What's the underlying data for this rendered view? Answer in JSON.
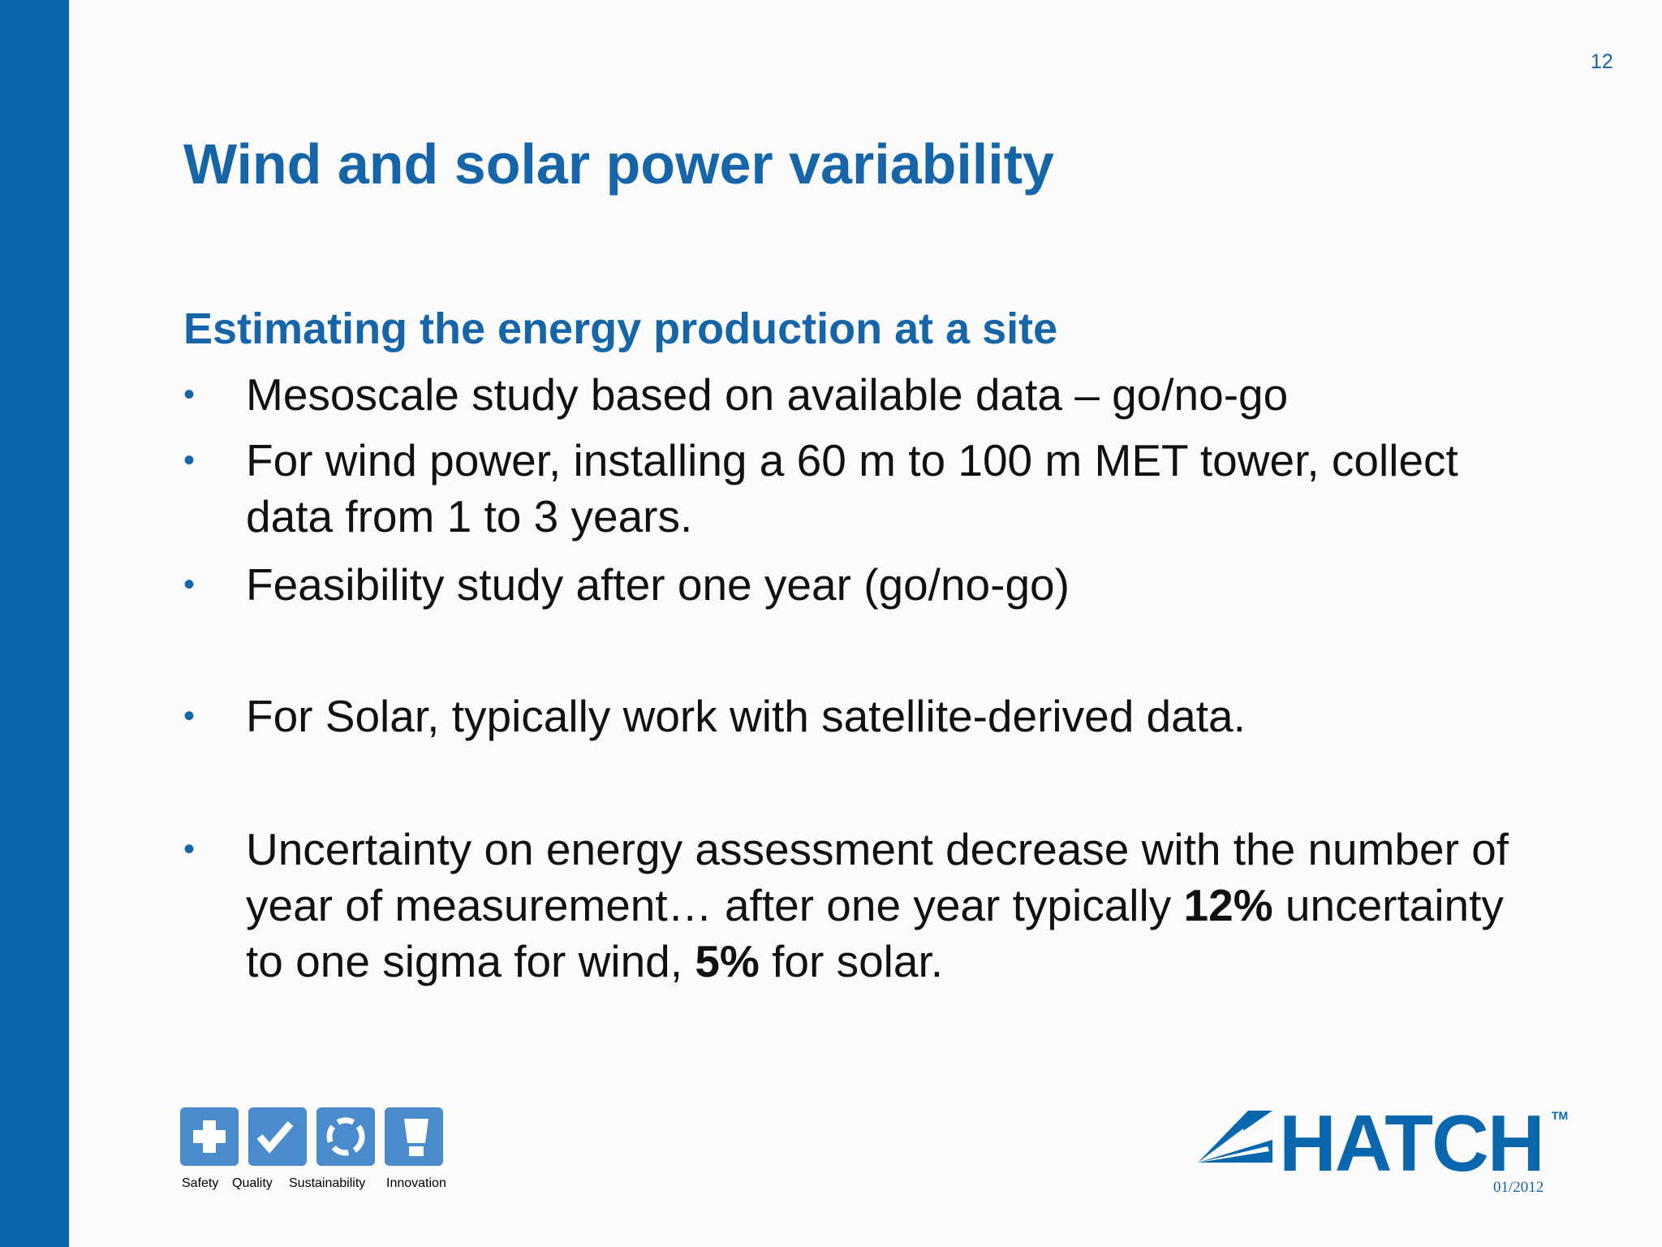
{
  "page_number": "12",
  "title": "Wind and solar power variability",
  "subtitle": "Estimating the energy production at a site",
  "bullets": [
    [
      {
        "text": "Mesoscale study based on available data – go/no-go",
        "bold": false
      }
    ],
    [
      {
        "text": "For wind power, installing a 60 m to 100 m MET tower, collect data from 1 to 3 years.",
        "bold": false
      }
    ],
    [
      {
        "text": "Feasibility study after one year (go/no-go)",
        "bold": false
      }
    ],
    [
      {
        "text": "For Solar, typically work with satellite-derived data.",
        "bold": false
      }
    ],
    [
      {
        "text": "Uncertainty on energy assessment decrease with the number of year of measurement… after one year typically ",
        "bold": false
      },
      {
        "text": "12%",
        "bold": true
      },
      {
        "text": " uncertainty to one sigma for wind, ",
        "bold": false
      },
      {
        "text": "5%",
        "bold": true
      },
      {
        "text": " for solar.",
        "bold": false
      }
    ]
  ],
  "values_logo": {
    "tagline": [
      "Safety",
      "Quality",
      "Sustainability",
      "Innovation"
    ]
  },
  "brand": {
    "name": "HATCH",
    "trademark": "TM"
  },
  "date": "01/2012"
}
